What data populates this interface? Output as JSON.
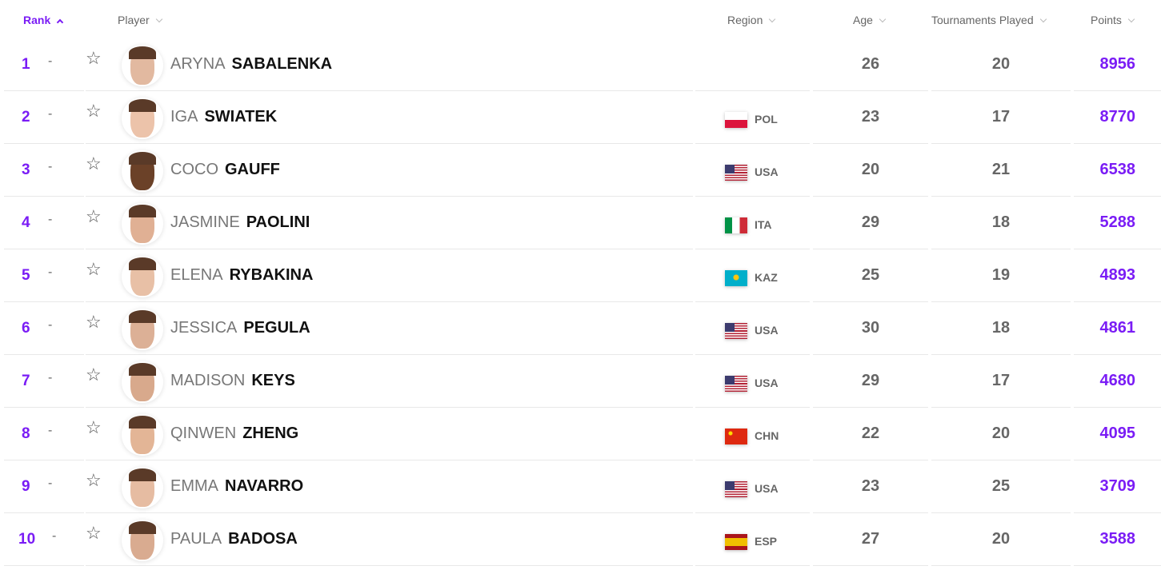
{
  "header": {
    "rank": "Rank",
    "player": "Player",
    "region": "Region",
    "age": "Age",
    "tournaments": "Tournaments Played",
    "points": "Points"
  },
  "colors": {
    "accent": "#7a1cf5"
  },
  "rows": [
    {
      "rank": "1",
      "move": "-",
      "first": "ARYNA",
      "last": "SABALENKA",
      "region": "",
      "age": "26",
      "tournaments": "20",
      "points": "8956"
    },
    {
      "rank": "2",
      "move": "-",
      "first": "IGA",
      "last": "SWIATEK",
      "region": "POL",
      "age": "23",
      "tournaments": "17",
      "points": "8770"
    },
    {
      "rank": "3",
      "move": "-",
      "first": "COCO",
      "last": "GAUFF",
      "region": "USA",
      "age": "20",
      "tournaments": "21",
      "points": "6538"
    },
    {
      "rank": "4",
      "move": "-",
      "first": "JASMINE",
      "last": "PAOLINI",
      "region": "ITA",
      "age": "29",
      "tournaments": "18",
      "points": "5288"
    },
    {
      "rank": "5",
      "move": "-",
      "first": "ELENA",
      "last": "RYBAKINA",
      "region": "KAZ",
      "age": "25",
      "tournaments": "19",
      "points": "4893"
    },
    {
      "rank": "6",
      "move": "-",
      "first": "JESSICA",
      "last": "PEGULA",
      "region": "USA",
      "age": "30",
      "tournaments": "18",
      "points": "4861"
    },
    {
      "rank": "7",
      "move": "-",
      "first": "MADISON",
      "last": "KEYS",
      "region": "USA",
      "age": "29",
      "tournaments": "17",
      "points": "4680"
    },
    {
      "rank": "8",
      "move": "-",
      "first": "QINWEN",
      "last": "ZHENG",
      "region": "CHN",
      "age": "22",
      "tournaments": "20",
      "points": "4095"
    },
    {
      "rank": "9",
      "move": "-",
      "first": "EMMA",
      "last": "NAVARRO",
      "region": "USA",
      "age": "23",
      "tournaments": "25",
      "points": "3709"
    },
    {
      "rank": "10",
      "move": "-",
      "first": "PAULA",
      "last": "BADOSA",
      "region": "ESP",
      "age": "27",
      "tournaments": "20",
      "points": "3588"
    }
  ]
}
